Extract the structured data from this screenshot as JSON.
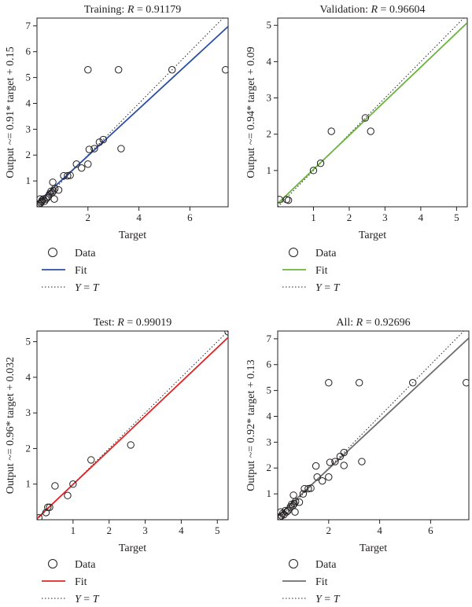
{
  "chart_data": [
    {
      "type": "scatter",
      "title": "Training: R = 0.91179",
      "title_parts": [
        "Training: ",
        "R",
        " = 0.91179"
      ],
      "xlabel": "Target",
      "ylabel": "Output ~= 0.91* target + 0.15",
      "xlim": [
        0,
        7.5
      ],
      "ylim": [
        0,
        7.3
      ],
      "xticks": [
        2,
        4,
        6
      ],
      "yticks": [
        1,
        2,
        3,
        4,
        5,
        6,
        7
      ],
      "fit": {
        "slope": 0.91,
        "intercept": 0.15,
        "color": "#2b4ea6"
      },
      "points": [
        [
          0.05,
          0.05
        ],
        [
          0.1,
          0.1
        ],
        [
          0.12,
          0.3
        ],
        [
          0.15,
          0.15
        ],
        [
          0.18,
          0.2
        ],
        [
          0.2,
          0.25
        ],
        [
          0.25,
          0.3
        ],
        [
          0.3,
          0.22
        ],
        [
          0.35,
          0.3
        ],
        [
          0.4,
          0.35
        ],
        [
          0.45,
          0.4
        ],
        [
          0.5,
          0.5
        ],
        [
          0.55,
          0.6
        ],
        [
          0.6,
          0.55
        ],
        [
          0.62,
          0.95
        ],
        [
          0.65,
          0.62
        ],
        [
          0.68,
          0.3
        ],
        [
          0.7,
          0.7
        ],
        [
          0.85,
          0.65
        ],
        [
          1.05,
          1.2
        ],
        [
          1.2,
          1.2
        ],
        [
          1.3,
          1.22
        ],
        [
          1.55,
          1.65
        ],
        [
          1.75,
          1.5
        ],
        [
          2.0,
          1.65
        ],
        [
          2.05,
          2.22
        ],
        [
          2.25,
          2.25
        ],
        [
          2.45,
          2.5
        ],
        [
          2.6,
          2.6
        ],
        [
          3.3,
          2.25
        ],
        [
          2.0,
          5.3
        ],
        [
          3.2,
          5.3
        ],
        [
          5.3,
          5.3
        ],
        [
          7.4,
          5.3
        ]
      ]
    },
    {
      "type": "scatter",
      "title": "Validation: R = 0.96604",
      "title_parts": [
        "Validation: ",
        "R",
        " = 0.96604"
      ],
      "xlabel": "Target",
      "ylabel": "Output ~= 0.94* target + 0.09",
      "xlim": [
        0,
        5.3
      ],
      "ylim": [
        0,
        5.2
      ],
      "xticks": [
        1,
        2,
        3,
        4,
        5
      ],
      "yticks": [
        1,
        2,
        3,
        4,
        5
      ],
      "fit": {
        "slope": 0.94,
        "intercept": 0.09,
        "color": "#6ab43e"
      },
      "points": [
        [
          0.05,
          0.2
        ],
        [
          0.25,
          0.2
        ],
        [
          0.3,
          0.18
        ],
        [
          1.0,
          1.0
        ],
        [
          1.2,
          1.2
        ],
        [
          1.5,
          2.08
        ],
        [
          2.45,
          2.45
        ],
        [
          2.6,
          2.08
        ]
      ]
    },
    {
      "type": "scatter",
      "title": "Test: R = 0.99019",
      "title_parts": [
        "Test: ",
        "R",
        " = 0.99019"
      ],
      "xlabel": "Target",
      "ylabel": "Output ~= 0.96* target + 0.032",
      "xlim": [
        0,
        5.3
      ],
      "ylim": [
        0,
        5.3
      ],
      "xticks": [
        1,
        2,
        3,
        4,
        5
      ],
      "yticks": [
        1,
        2,
        3,
        4,
        5
      ],
      "fit": {
        "slope": 0.96,
        "intercept": 0.032,
        "color": "#e02424"
      },
      "points": [
        [
          0.05,
          0.05
        ],
        [
          0.25,
          0.2
        ],
        [
          0.3,
          0.35
        ],
        [
          0.35,
          0.35
        ],
        [
          0.5,
          0.95
        ],
        [
          0.85,
          0.68
        ],
        [
          1.0,
          1.0
        ],
        [
          1.5,
          1.68
        ],
        [
          2.6,
          2.1
        ],
        [
          5.3,
          5.28
        ]
      ]
    },
    {
      "type": "scatter",
      "title": "All: R = 0.92696",
      "title_parts": [
        "All: ",
        "R",
        " = 0.92696"
      ],
      "xlabel": "Target",
      "ylabel": "Output ~= 0.92* target + 0.13",
      "xlim": [
        0,
        7.5
      ],
      "ylim": [
        0,
        7.3
      ],
      "xticks": [
        2,
        4,
        6
      ],
      "yticks": [
        1,
        2,
        3,
        4,
        5,
        6,
        7
      ],
      "fit": {
        "slope": 0.92,
        "intercept": 0.13,
        "color": "#6d6e71"
      },
      "points": [
        [
          0.05,
          0.05
        ],
        [
          0.1,
          0.1
        ],
        [
          0.12,
          0.3
        ],
        [
          0.15,
          0.15
        ],
        [
          0.2,
          0.25
        ],
        [
          0.25,
          0.2
        ],
        [
          0.3,
          0.35
        ],
        [
          0.35,
          0.3
        ],
        [
          0.4,
          0.35
        ],
        [
          0.5,
          0.5
        ],
        [
          0.55,
          0.6
        ],
        [
          0.6,
          0.55
        ],
        [
          0.62,
          0.95
        ],
        [
          0.65,
          0.62
        ],
        [
          0.7,
          0.7
        ],
        [
          0.68,
          0.3
        ],
        [
          0.85,
          0.68
        ],
        [
          1.0,
          1.0
        ],
        [
          1.05,
          1.2
        ],
        [
          1.2,
          1.2
        ],
        [
          1.3,
          1.22
        ],
        [
          1.5,
          2.08
        ],
        [
          1.55,
          1.65
        ],
        [
          1.75,
          1.5
        ],
        [
          2.0,
          1.65
        ],
        [
          2.05,
          2.22
        ],
        [
          2.25,
          2.25
        ],
        [
          2.45,
          2.45
        ],
        [
          2.6,
          2.1
        ],
        [
          2.6,
          2.6
        ],
        [
          3.3,
          2.25
        ],
        [
          2.0,
          5.3
        ],
        [
          3.2,
          5.3
        ],
        [
          5.3,
          5.3
        ],
        [
          7.4,
          5.3
        ]
      ]
    }
  ],
  "legend": {
    "data_label": "Data",
    "fit_label": "Fit",
    "identity_label": "Y = T",
    "identity_parts": [
      "Y",
      " = ",
      "T"
    ]
  }
}
